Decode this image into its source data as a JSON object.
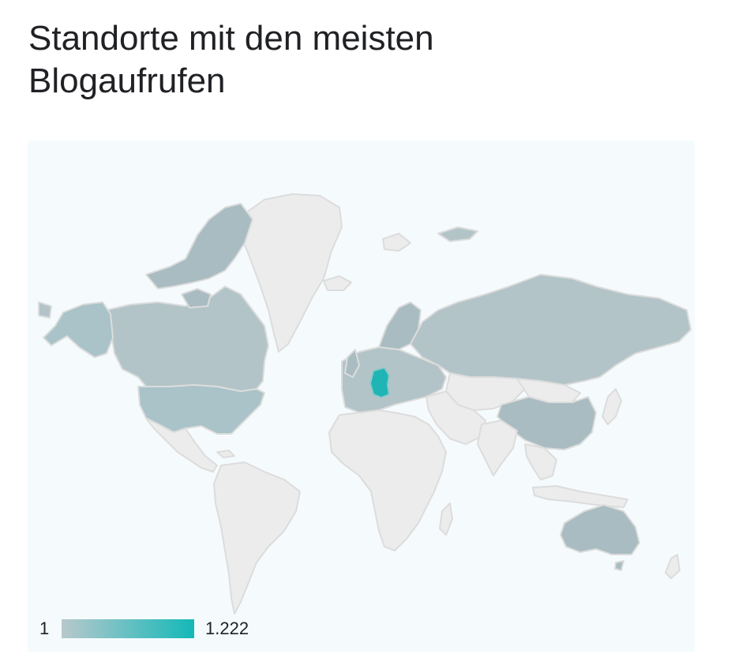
{
  "title": "Standorte mit den meisten Blogaufrufen",
  "colors": {
    "background": "#f5fbfd",
    "no_data": "#ececec",
    "no_data_border": "#dddddd",
    "low": "#b3c4c8",
    "mid": "#a9c3c8",
    "high": "#1fb5b5"
  },
  "legend": {
    "min_label": "1",
    "max_label": "1.222",
    "min_value": 1,
    "max_value": 1222
  },
  "map": {
    "type": "choropleth",
    "region": "world",
    "highlighted": [
      {
        "country": "Germany",
        "value": 1222
      },
      {
        "country": "United States",
        "value": 140
      },
      {
        "country": "Alaska (US)",
        "value": 140
      },
      {
        "country": "Canada",
        "value": 6
      },
      {
        "country": "Russia",
        "value": 4
      },
      {
        "country": "China",
        "value": 3
      },
      {
        "country": "Australia",
        "value": 3
      },
      {
        "country": "Europe (other)",
        "value": 2
      }
    ]
  }
}
